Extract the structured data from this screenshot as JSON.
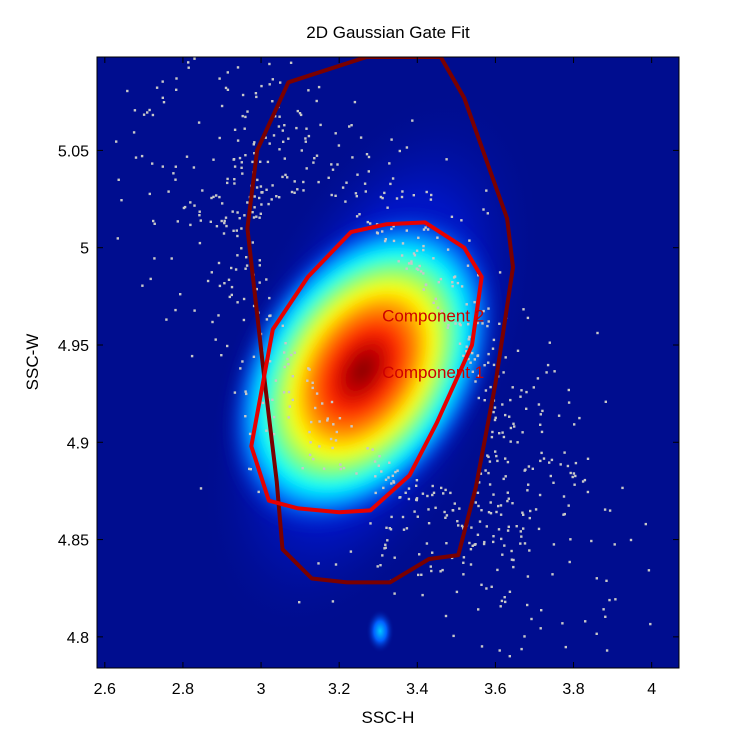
{
  "chart_data": {
    "type": "scatter",
    "title": "2D Gaussian Gate Fit",
    "xlabel": "SSC-H",
    "ylabel": "SSC-W",
    "xlim": [
      2.58,
      4.07
    ],
    "ylim": [
      4.784,
      5.098
    ],
    "xticks": [
      {
        "value": 2.6,
        "label": "2.6"
      },
      {
        "value": 2.8,
        "label": "2.8"
      },
      {
        "value": 3.0,
        "label": "3"
      },
      {
        "value": 3.2,
        "label": "3.2"
      },
      {
        "value": 3.4,
        "label": "3.4"
      },
      {
        "value": 3.6,
        "label": "3.6"
      },
      {
        "value": 3.8,
        "label": "3.8"
      },
      {
        "value": 4.0,
        "label": "4"
      }
    ],
    "yticks": [
      {
        "value": 4.8,
        "label": "4.8"
      },
      {
        "value": 4.85,
        "label": "4.85"
      },
      {
        "value": 4.9,
        "label": "4.9"
      },
      {
        "value": 4.95,
        "label": "4.95"
      },
      {
        "value": 5.0,
        "label": "5"
      },
      {
        "value": 5.05,
        "label": "5.05"
      }
    ],
    "grid": false,
    "colors": {
      "background": "#000d8f",
      "outlier_points": "#c8c8c8",
      "component_1_contour": "#7a0000",
      "component_2_contour": "#e60000",
      "annotation_text": "#cc0000"
    },
    "density_peaks": [
      {
        "x": 3.26,
        "y": 4.937,
        "weight": 1.0
      },
      {
        "x": 3.305,
        "y": 4.803,
        "weight": 0.35
      }
    ],
    "contours": [
      {
        "id": "component-1",
        "points": [
          [
            3.27,
            5.098
          ],
          [
            3.35,
            5.098
          ],
          [
            3.46,
            5.098
          ],
          [
            3.52,
            5.077
          ],
          [
            3.63,
            5.015
          ],
          [
            3.645,
            4.99
          ],
          [
            3.6,
            4.93
          ],
          [
            3.55,
            4.877
          ],
          [
            3.505,
            4.842
          ],
          [
            3.43,
            4.84
          ],
          [
            3.33,
            4.828
          ],
          [
            3.22,
            4.828
          ],
          [
            3.13,
            4.83
          ],
          [
            3.055,
            4.845
          ],
          [
            3.04,
            4.88
          ],
          [
            3.01,
            4.93
          ],
          [
            2.965,
            5.01
          ],
          [
            2.99,
            5.05
          ],
          [
            3.07,
            5.085
          ],
          [
            3.27,
            5.098
          ]
        ]
      },
      {
        "id": "component-2",
        "points": [
          [
            3.42,
            5.013
          ],
          [
            3.52,
            5.0
          ],
          [
            3.565,
            4.985
          ],
          [
            3.54,
            4.95
          ],
          [
            3.45,
            4.91
          ],
          [
            3.38,
            4.883
          ],
          [
            3.28,
            4.865
          ],
          [
            3.2,
            4.864
          ],
          [
            3.095,
            4.866
          ],
          [
            3.02,
            4.87
          ],
          [
            2.975,
            4.898
          ],
          [
            3.03,
            4.958
          ],
          [
            3.12,
            4.985
          ],
          [
            3.23,
            5.008
          ],
          [
            3.32,
            5.012
          ],
          [
            3.42,
            5.013
          ]
        ]
      }
    ],
    "annotations": [
      {
        "id": "component-2",
        "text": "Component 2",
        "x": 3.31,
        "y": 4.962
      },
      {
        "id": "component-1",
        "text": "Component 1",
        "x": 3.31,
        "y": 4.933
      }
    ]
  }
}
